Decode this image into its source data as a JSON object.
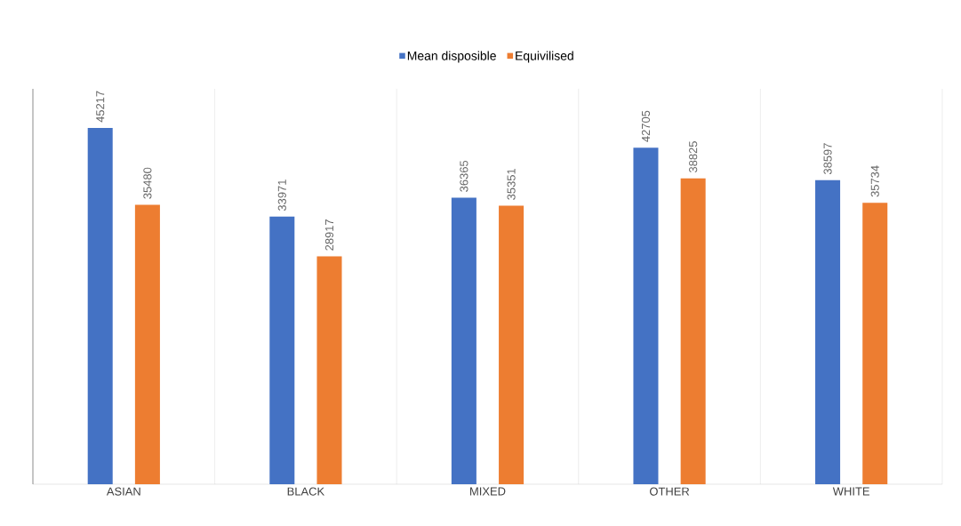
{
  "chart_data": {
    "type": "bar",
    "categories": [
      "ASIAN",
      "BLACK",
      "MIXED",
      "OTHER",
      "WHITE"
    ],
    "series": [
      {
        "name": "Mean disposible",
        "color": "#4472c4",
        "values": [
          45217,
          33971,
          36365,
          42705,
          38597
        ]
      },
      {
        "name": "Equivilised",
        "color": "#ed7d31",
        "values": [
          35480,
          28917,
          35351,
          38825,
          35734
        ]
      }
    ],
    "relative": false,
    "data_labels": true,
    "grid": "x",
    "legend": "top",
    "tick_labels": "x"
  }
}
